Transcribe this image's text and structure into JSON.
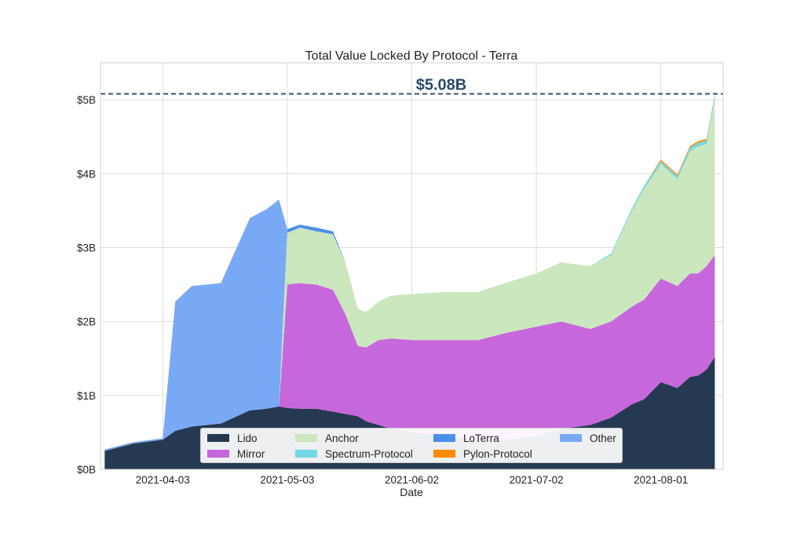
{
  "chart_data": {
    "type": "area",
    "stacked": true,
    "title": "Total Value Locked By Protocol - Terra",
    "xlabel": "Date",
    "ylabel": "",
    "x_ticks": [
      "2021-04-03",
      "2021-05-03",
      "2021-06-02",
      "2021-07-02",
      "2021-08-01"
    ],
    "y_ticks": [
      "$0B",
      "$1B",
      "$2B",
      "$3B",
      "$4B",
      "$5B"
    ],
    "ylim": [
      0,
      5.5
    ],
    "grid": true,
    "legend_position": "bottom-center",
    "annotation": {
      "text": "$5.08B",
      "value": 5.08
    },
    "annotation_color": "#2b4a6a",
    "dates": [
      "2021-03-20",
      "2021-03-27",
      "2021-04-03",
      "2021-04-06",
      "2021-04-10",
      "2021-04-17",
      "2021-04-24",
      "2021-04-28",
      "2021-05-01",
      "2021-05-03",
      "2021-05-06",
      "2021-05-10",
      "2021-05-14",
      "2021-05-17",
      "2021-05-20",
      "2021-05-22",
      "2021-05-25",
      "2021-05-28",
      "2021-06-02",
      "2021-06-10",
      "2021-06-18",
      "2021-06-25",
      "2021-07-02",
      "2021-07-08",
      "2021-07-15",
      "2021-07-20",
      "2021-07-25",
      "2021-07-28",
      "2021-08-01",
      "2021-08-05",
      "2021-08-08",
      "2021-08-10",
      "2021-08-12",
      "2021-08-14"
    ],
    "series": [
      {
        "name": "Lido",
        "color": "#253a52",
        "values": [
          0.25,
          0.35,
          0.4,
          0.52,
          0.58,
          0.62,
          0.8,
          0.82,
          0.85,
          0.83,
          0.82,
          0.82,
          0.78,
          0.75,
          0.72,
          0.65,
          0.6,
          0.55,
          0.5,
          0.45,
          0.4,
          0.4,
          0.45,
          0.55,
          0.6,
          0.7,
          0.88,
          0.95,
          1.18,
          1.1,
          1.25,
          1.27,
          1.35,
          1.52
        ]
      },
      {
        "name": "Mirror",
        "color": "#c767dc",
        "values": [
          0,
          0,
          0,
          0,
          0,
          0,
          0,
          0,
          0,
          1.67,
          1.7,
          1.68,
          1.65,
          1.35,
          0.95,
          1.0,
          1.15,
          1.22,
          1.25,
          1.3,
          1.35,
          1.45,
          1.48,
          1.45,
          1.3,
          1.3,
          1.32,
          1.35,
          1.4,
          1.38,
          1.4,
          1.38,
          1.4,
          1.38
        ]
      },
      {
        "name": "Anchor",
        "color": "#cae7be",
        "values": [
          0,
          0,
          0,
          0,
          0,
          0,
          0,
          0,
          0,
          0.7,
          0.75,
          0.72,
          0.75,
          0.7,
          0.5,
          0.48,
          0.52,
          0.58,
          0.62,
          0.65,
          0.65,
          0.68,
          0.72,
          0.8,
          0.85,
          0.9,
          1.3,
          1.5,
          1.55,
          1.45,
          1.65,
          1.72,
          1.65,
          2.13
        ]
      },
      {
        "name": "Spectrum-Protocol",
        "color": "#74d7e6",
        "values": [
          0,
          0,
          0,
          0,
          0,
          0,
          0,
          0,
          0,
          0,
          0,
          0,
          0,
          0,
          0,
          0,
          0,
          0,
          0,
          0,
          0,
          0,
          0,
          0,
          0,
          0.02,
          0.03,
          0.04,
          0.04,
          0.04,
          0.05,
          0.05,
          0.05,
          0.05
        ]
      },
      {
        "name": "LoTerra",
        "color": "#4c8fe8",
        "values": [
          0,
          0,
          0,
          0,
          0,
          0,
          0,
          0,
          0,
          0.05,
          0.04,
          0.05,
          0.04,
          0,
          0,
          0,
          0,
          0,
          0,
          0,
          0,
          0,
          0,
          0,
          0,
          0,
          0,
          0,
          0,
          0,
          0,
          0,
          0,
          0
        ]
      },
      {
        "name": "Pylon-Protocol",
        "color": "#ff8c00",
        "values": [
          0,
          0,
          0,
          0,
          0,
          0,
          0,
          0,
          0,
          0,
          0,
          0,
          0,
          0,
          0,
          0,
          0,
          0,
          0,
          0,
          0,
          0,
          0,
          0,
          0,
          0,
          0,
          0,
          0.02,
          0.02,
          0.02,
          0.02,
          0.02,
          0
        ]
      },
      {
        "name": "Other",
        "color": "#79a9f5",
        "values": [
          0.02,
          0.02,
          0.02,
          1.75,
          1.9,
          1.9,
          2.6,
          2.7,
          2.8,
          0,
          0,
          0,
          0,
          0,
          0,
          0,
          0,
          0,
          0,
          0,
          0,
          0,
          0,
          0,
          0,
          0,
          0,
          0,
          0,
          0,
          0,
          0,
          0,
          0
        ]
      }
    ]
  }
}
